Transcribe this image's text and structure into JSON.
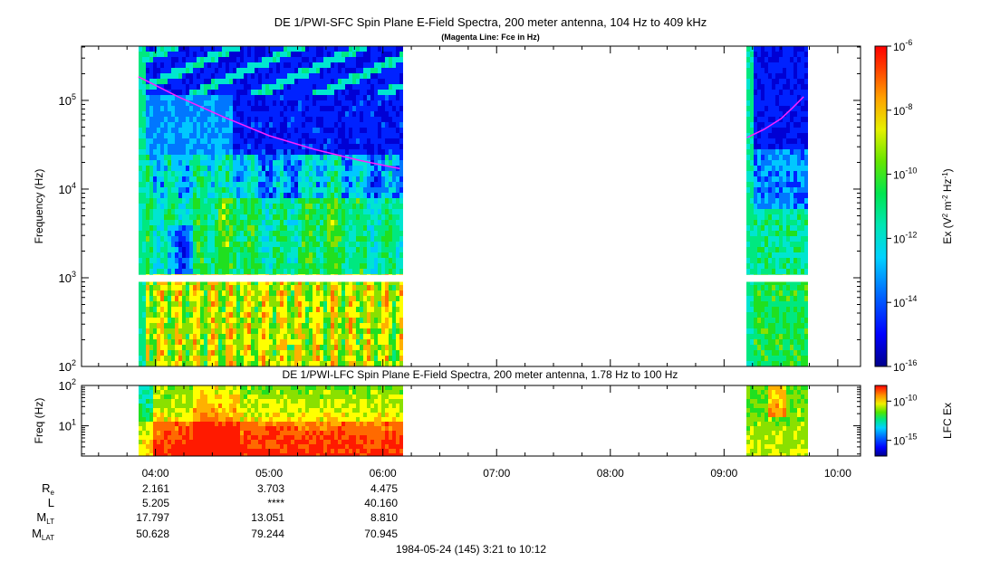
{
  "header": {
    "title_sfc": "DE 1/PWI-SFC  Spin Plane E-Field Spectra, 200 meter antenna, 104 Hz to 409 kHz",
    "subtitle_sfc": "(Magenta Line: Fce in Hz)",
    "title_lfc": "DE 1/PWI-LFC  Spin Plane E-Field Spectra, 200 meter antenna, 1.78 Hz to 100 Hz",
    "footer": "1984-05-24 (145) 3:21 to 10:12"
  },
  "chart_data": [
    {
      "type": "heatmap",
      "panel": "SFC",
      "title": "DE 1/PWI-SFC  Spin Plane E-Field Spectra, 200 meter antenna, 104 Hz to 409 kHz",
      "subtitle": "(Magenta Line: Fce in Hz)",
      "ylabel": "Frequency (Hz)",
      "y_scale": "log",
      "ylim": [
        100,
        409000
      ],
      "y_ticks": [
        {
          "label": "10",
          "exp": "2",
          "value": 100
        },
        {
          "label": "10",
          "exp": "3",
          "value": 1000
        },
        {
          "label": "10",
          "exp": "4",
          "value": 10000
        },
        {
          "label": "10",
          "exp": "5",
          "value": 100000
        }
      ],
      "x_range_hours": [
        3.35,
        10.2
      ],
      "data_intervals_hours": [
        [
          3.85,
          6.17
        ],
        [
          9.2,
          9.73
        ]
      ],
      "gap_band_hz": [
        900,
        1080
      ],
      "fce_line_segments": [
        {
          "x": [
            3.85,
            4.2,
            4.6,
            5.0,
            5.4,
            5.8,
            6.15
          ],
          "y": [
            185000,
            110000,
            65000,
            40000,
            28000,
            21000,
            17000
          ]
        },
        {
          "x": [
            9.2,
            9.35,
            9.5,
            9.6,
            9.7
          ],
          "y": [
            38000,
            47000,
            62000,
            82000,
            110000
          ]
        }
      ],
      "colorbar": {
        "label": "Ex (V",
        "label_parts": [
          "Ex (V",
          "2",
          " m",
          "-2",
          " Hz",
          "-1",
          ")"
        ],
        "scale": "log",
        "range": [
          1e-16,
          1e-06
        ],
        "ticks": [
          {
            "label": "10",
            "exp": "-6",
            "value": 1e-06
          },
          {
            "label": "10",
            "exp": "-8",
            "value": 1e-08
          },
          {
            "label": "10",
            "exp": "-10",
            "value": 1e-10
          },
          {
            "label": "10",
            "exp": "-12",
            "value": 1e-12
          },
          {
            "label": "10",
            "exp": "-14",
            "value": 1e-14
          },
          {
            "label": "10",
            "exp": "-16",
            "value": 1e-16
          }
        ]
      }
    },
    {
      "type": "heatmap",
      "panel": "LFC",
      "title": "DE 1/PWI-LFC  Spin Plane E-Field Spectra, 200 meter antenna, 1.78 Hz to 100 Hz",
      "ylabel": "Freq (Hz)",
      "y_scale": "log",
      "ylim": [
        1.78,
        100
      ],
      "y_ticks": [
        {
          "label": "10",
          "exp": "1",
          "value": 10
        },
        {
          "label": "10",
          "exp": "2",
          "value": 100
        }
      ],
      "x_range_hours": [
        3.35,
        10.2
      ],
      "data_intervals_hours": [
        [
          3.85,
          6.17
        ],
        [
          9.2,
          9.73
        ]
      ],
      "colorbar": {
        "label": "LFC Ex",
        "scale": "log",
        "range": [
          1e-17,
          1e-08
        ],
        "ticks": [
          {
            "label": "10",
            "exp": "-10",
            "value": 1e-10
          },
          {
            "label": "10",
            "exp": "-15",
            "value": 1e-15
          }
        ]
      }
    }
  ],
  "x_axis": {
    "ticks": [
      {
        "label": "04:00",
        "hour": 4
      },
      {
        "label": "05:00",
        "hour": 5
      },
      {
        "label": "06:00",
        "hour": 6
      },
      {
        "label": "07:00",
        "hour": 7
      },
      {
        "label": "08:00",
        "hour": 8
      },
      {
        "label": "09:00",
        "hour": 9
      },
      {
        "label": "10:00",
        "hour": 10
      }
    ],
    "minor_step_hours": 0.25
  },
  "ephemeris": {
    "rows": [
      {
        "label": "R",
        "sub": "e",
        "values": [
          "2.161",
          "3.703",
          "4.475"
        ]
      },
      {
        "label": "L",
        "sub": "",
        "values": [
          "5.205",
          "****",
          "40.160"
        ]
      },
      {
        "label": "M",
        "sub": "LT",
        "values": [
          "17.797",
          "13.051",
          "8.810"
        ]
      },
      {
        "label": "M",
        "sub": "LAT",
        "values": [
          "50.628",
          "79.244",
          "70.945"
        ]
      }
    ]
  },
  "colors": {
    "palette": [
      "#00008b",
      "#0000d4",
      "#0022ff",
      "#0077ff",
      "#00c8ff",
      "#00e5d0",
      "#00e880",
      "#20e020",
      "#8ae000",
      "#ffff00",
      "#ffb000",
      "#ff6a00",
      "#ff1a00"
    ],
    "fce_line": "#ff20ff"
  }
}
